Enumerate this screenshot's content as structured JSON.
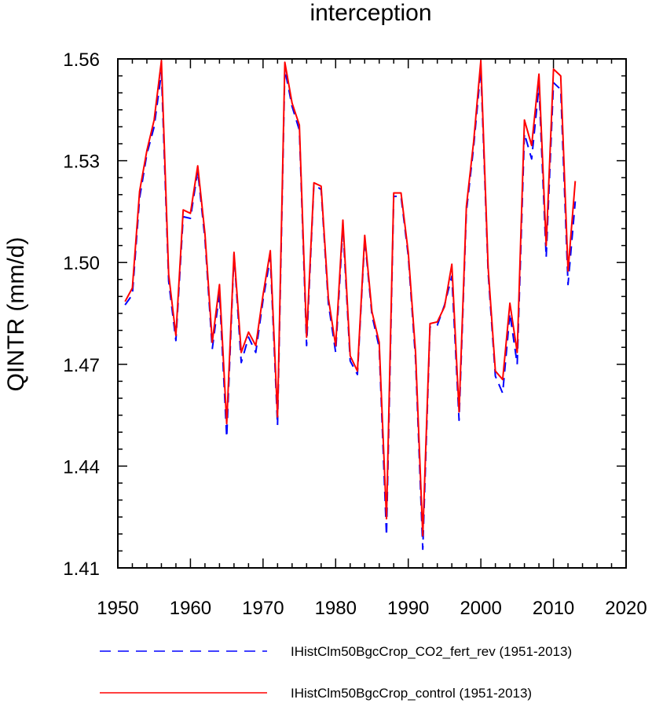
{
  "chart_data": {
    "type": "line",
    "title": "interception",
    "xlabel": "",
    "ylabel": "QINTR  (mm/d)",
    "xlim": [
      1950,
      2020
    ],
    "ylim": [
      1.41,
      1.56
    ],
    "x_ticks": [
      1950,
      1960,
      1970,
      1980,
      1990,
      2000,
      2010,
      2020
    ],
    "y_ticks": [
      "1.41",
      "1.44",
      "1.47",
      "1.50",
      "1.53",
      "1.56"
    ],
    "grid": false,
    "legend_position": "bottom",
    "x": [
      1951,
      1952,
      1953,
      1954,
      1955,
      1956,
      1957,
      1958,
      1959,
      1960,
      1961,
      1962,
      1963,
      1964,
      1965,
      1966,
      1967,
      1968,
      1969,
      1970,
      1971,
      1972,
      1973,
      1974,
      1975,
      1976,
      1977,
      1978,
      1979,
      1980,
      1981,
      1982,
      1983,
      1984,
      1985,
      1986,
      1987,
      1988,
      1989,
      1990,
      1991,
      1992,
      1993,
      1994,
      1995,
      1996,
      1997,
      1998,
      1999,
      2000,
      2001,
      2002,
      2003,
      2004,
      2005,
      2006,
      2007,
      2008,
      2009,
      2010,
      2011,
      2012,
      2013
    ],
    "series": [
      {
        "name": "IHistClm50BgcCrop_CO2_fert_rev (1951-2013)",
        "color": "#0000ff",
        "dash": "dashed",
        "values": [
          1.4875,
          1.4905,
          1.519,
          1.532,
          1.54,
          1.556,
          1.4945,
          1.477,
          1.5135,
          1.513,
          1.527,
          1.507,
          1.4745,
          1.491,
          1.4485,
          1.5025,
          1.4705,
          1.478,
          1.4735,
          1.489,
          1.5015,
          1.452,
          1.557,
          1.546,
          1.539,
          1.4755,
          1.523,
          1.5215,
          1.488,
          1.4735,
          1.5105,
          1.471,
          1.467,
          1.507,
          1.4845,
          1.475,
          1.4195,
          1.5195,
          1.5195,
          1.502,
          1.4715,
          1.4155,
          1.481,
          1.4815,
          1.4875,
          1.496,
          1.4535,
          1.515,
          1.534,
          1.557,
          1.497,
          1.4665,
          1.4615,
          1.485,
          1.47,
          1.538,
          1.5305,
          1.552,
          1.5015,
          1.553,
          1.551,
          1.4935,
          1.518
        ]
      },
      {
        "name": "IHistClm50BgcCrop_control (1951-2013)",
        "color": "#ff0000",
        "dash": "solid",
        "values": [
          1.4885,
          1.4925,
          1.521,
          1.533,
          1.542,
          1.5595,
          1.4965,
          1.4785,
          1.5155,
          1.5145,
          1.5285,
          1.5085,
          1.4765,
          1.4935,
          1.4525,
          1.503,
          1.4735,
          1.4795,
          1.4755,
          1.4905,
          1.5035,
          1.4545,
          1.559,
          1.547,
          1.5405,
          1.478,
          1.5235,
          1.5225,
          1.4895,
          1.4755,
          1.5125,
          1.4725,
          1.468,
          1.508,
          1.4855,
          1.4765,
          1.4245,
          1.5205,
          1.5205,
          1.503,
          1.4735,
          1.4195,
          1.482,
          1.4825,
          1.487,
          1.4995,
          1.456,
          1.5165,
          1.5355,
          1.5595,
          1.4985,
          1.468,
          1.4655,
          1.488,
          1.4735,
          1.542,
          1.5345,
          1.5555,
          1.505,
          1.557,
          1.555,
          1.4975,
          1.524
        ]
      }
    ]
  }
}
